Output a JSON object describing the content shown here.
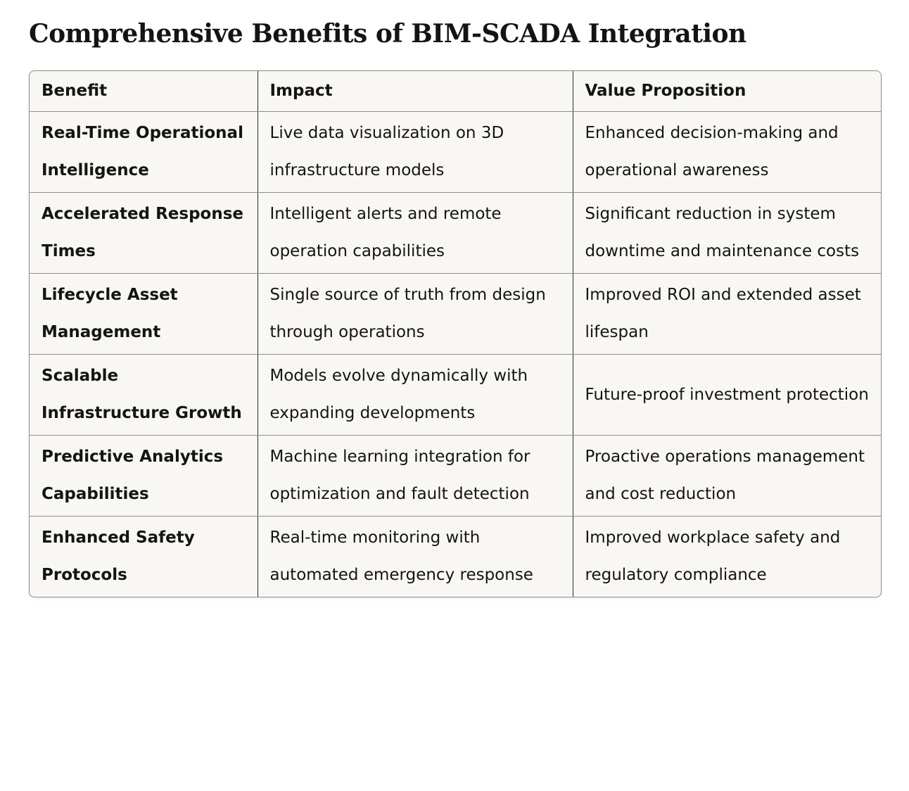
{
  "title": "Comprehensive Benefits of BIM-SCADA Integration",
  "table": {
    "headers": [
      "Benefit",
      "Impact",
      "Value Proposition"
    ],
    "rows": [
      [
        "Real-Time Operational Intelligence",
        "Live data visualization on 3D infrastructure models",
        "Enhanced decision-making and operational awareness"
      ],
      [
        "Accelerated Response Times",
        "Intelligent alerts and remote operation capabilities",
        "Significant reduction in system downtime and maintenance costs"
      ],
      [
        "Lifecycle Asset Management",
        "Single source of truth from design through operations",
        "Improved ROI and extended asset lifespan"
      ],
      [
        "Scalable Infrastructure Growth",
        "Models evolve dynamically with expanding developments",
        "Future-proof investment protection"
      ],
      [
        "Predictive Analytics Capabilities",
        "Machine learning integration for optimization and fault detection",
        "Proactive operations management and cost reduction"
      ],
      [
        "Enhanced Safety Protocols",
        "Real-time monitoring with automated emergency response",
        "Improved workplace safety and regulatory compliance"
      ]
    ]
  }
}
